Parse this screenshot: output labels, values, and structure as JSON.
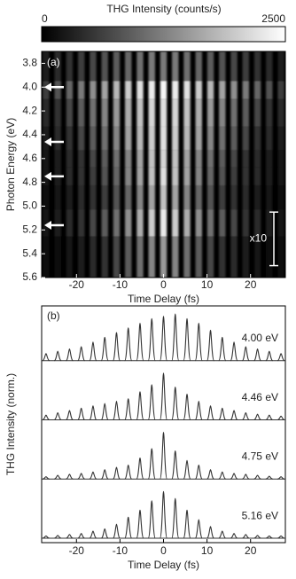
{
  "chart_data": [
    {
      "type": "heatmap",
      "panel_label": "(a)",
      "xlabel": "Time Delay (fs)",
      "ylabel": "Photon Energy (eV)",
      "xlim": [
        -28,
        28
      ],
      "xticks": [
        -20,
        -10,
        0,
        10,
        20
      ],
      "ylim": [
        3.7,
        5.6
      ],
      "yticks": [
        3.8,
        {
          "value": 4,
          "label": "4.0"
        },
        4.2,
        4.4,
        4.6,
        4.8,
        {
          "value": 5,
          "label": "5.0"
        },
        5.2,
        5.4,
        5.6
      ],
      "colorbar": {
        "title": "THG Intensity (counts/s)",
        "lim": [
          0,
          2500
        ],
        "ticks": [
          0,
          2500
        ]
      },
      "x": [
        -27,
        -24.3,
        -21.6,
        -18.9,
        -16.2,
        -13.5,
        -10.8,
        -8.1,
        -5.4,
        -2.7,
        0,
        2.7,
        5.4,
        8.1,
        10.8,
        13.5,
        16.2,
        18.9,
        21.6,
        24.3,
        27
      ],
      "y": [
        3.9,
        4.0,
        4.2,
        4.46,
        4.6,
        4.75,
        4.9,
        5.16,
        5.35
      ],
      "z": [
        [
          300,
          400,
          500,
          600,
          700,
          800,
          900,
          1000,
          1100,
          1200,
          1200,
          1200,
          1100,
          1000,
          900,
          800,
          700,
          600,
          500,
          400,
          300
        ],
        [
          600,
          800,
          1000,
          1200,
          1400,
          1600,
          1800,
          2000,
          2200,
          2300,
          2400,
          2300,
          2200,
          2000,
          1800,
          1600,
          1400,
          1200,
          1000,
          800,
          600
        ],
        [
          400,
          500,
          700,
          900,
          1100,
          1300,
          1500,
          1700,
          1900,
          2100,
          2200,
          2100,
          1900,
          1700,
          1500,
          1300,
          1100,
          900,
          700,
          500,
          400
        ],
        [
          300,
          400,
          500,
          700,
          900,
          1100,
          1300,
          1600,
          1800,
          2000,
          2200,
          2000,
          1800,
          1600,
          1300,
          1100,
          900,
          700,
          500,
          400,
          300
        ],
        [
          200,
          300,
          400,
          500,
          700,
          900,
          1100,
          1300,
          1600,
          1900,
          2100,
          1900,
          1600,
          1300,
          1100,
          900,
          700,
          500,
          400,
          300,
          200
        ],
        [
          200,
          300,
          400,
          500,
          600,
          800,
          1000,
          1300,
          1600,
          1900,
          2200,
          1900,
          1600,
          1300,
          1000,
          800,
          600,
          500,
          400,
          300,
          200
        ],
        [
          100,
          200,
          300,
          400,
          500,
          600,
          800,
          1000,
          1300,
          1600,
          1900,
          1600,
          1300,
          1000,
          800,
          600,
          500,
          400,
          300,
          200,
          100
        ],
        [
          200,
          300,
          400,
          500,
          700,
          900,
          1100,
          1400,
          1700,
          2000,
          2300,
          2000,
          1700,
          1400,
          1100,
          900,
          700,
          500,
          400,
          300,
          200
        ],
        [
          100,
          100,
          200,
          300,
          400,
          500,
          700,
          900,
          1100,
          1300,
          1500,
          1300,
          1100,
          900,
          700,
          500,
          400,
          300,
          200,
          100,
          100
        ]
      ],
      "arrows": [
        4.0,
        4.46,
        4.75,
        5.16
      ],
      "annotation": "x10",
      "annotation_range": [
        5.05,
        5.5
      ]
    },
    {
      "type": "line",
      "panel_label": "(b)",
      "xlabel": "Time Delay (fs)",
      "ylabel": "THG Intensity (norm.)",
      "xlim": [
        -28,
        28
      ],
      "xticks": [
        -20,
        -10,
        0,
        10,
        20
      ],
      "ylim": [
        0,
        1
      ],
      "x": [
        -27,
        -24.3,
        -21.6,
        -18.9,
        -16.2,
        -13.5,
        -10.8,
        -8.1,
        -5.4,
        -2.7,
        0,
        2.7,
        5.4,
        8.1,
        10.8,
        13.5,
        16.2,
        18.9,
        21.6,
        24.3,
        27
      ],
      "series": [
        {
          "name": "4.00 eV",
          "color": "#333333",
          "values": [
            0.15,
            0.2,
            0.25,
            0.3,
            0.4,
            0.5,
            0.6,
            0.7,
            0.8,
            0.9,
            0.95,
            1.0,
            0.9,
            0.8,
            0.65,
            0.5,
            0.4,
            0.3,
            0.25,
            0.2,
            0.15
          ]
        },
        {
          "name": "4.46 eV",
          "color": "#333333",
          "values": [
            0.1,
            0.15,
            0.2,
            0.25,
            0.3,
            0.35,
            0.4,
            0.45,
            0.6,
            0.75,
            1.0,
            0.7,
            0.55,
            0.4,
            0.3,
            0.25,
            0.2,
            0.15,
            0.12,
            0.1,
            0.08
          ]
        },
        {
          "name": "4.75 eV",
          "color": "#333333",
          "values": [
            0.05,
            0.08,
            0.1,
            0.12,
            0.15,
            0.2,
            0.25,
            0.3,
            0.45,
            0.65,
            1.0,
            0.6,
            0.4,
            0.3,
            0.2,
            0.15,
            0.12,
            0.1,
            0.08,
            0.06,
            0.05
          ]
        },
        {
          "name": "5.16 eV",
          "color": "#333333",
          "values": [
            0.05,
            0.06,
            0.08,
            0.1,
            0.15,
            0.2,
            0.3,
            0.45,
            0.6,
            0.8,
            1.0,
            0.85,
            0.6,
            0.4,
            0.25,
            0.15,
            0.1,
            0.08,
            0.06,
            0.05,
            0.05
          ]
        }
      ]
    }
  ]
}
